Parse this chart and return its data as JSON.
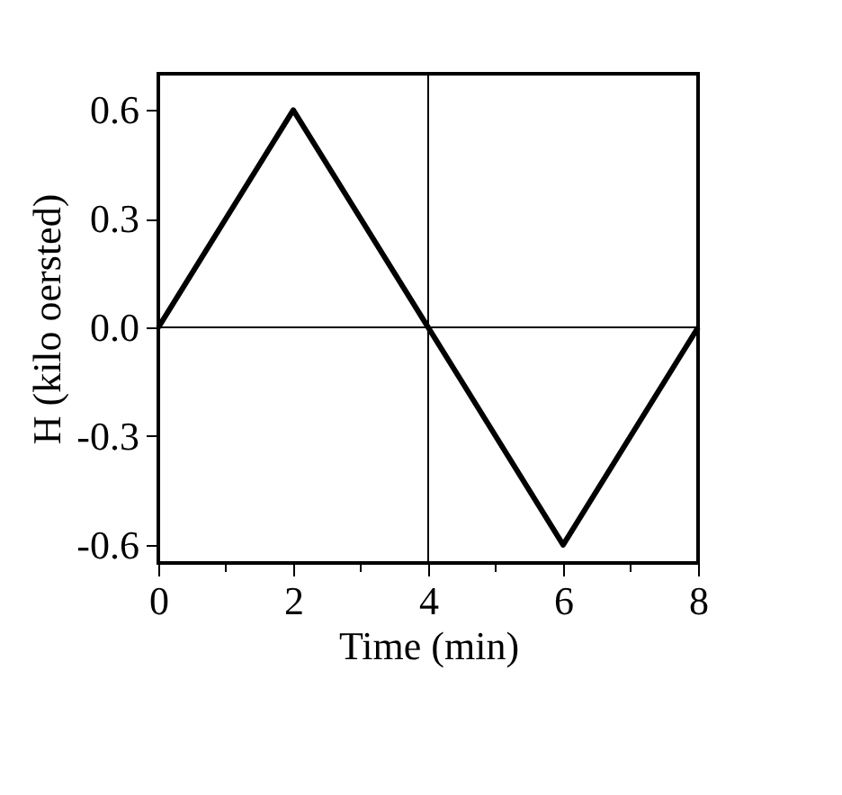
{
  "chart_data": {
    "type": "line",
    "xlabel": "Time (min)",
    "ylabel": "H (kilo oersted)",
    "x": [
      0,
      2,
      4,
      6,
      8
    ],
    "series": [
      {
        "color": "#000000",
        "values": [
          0,
          0.6,
          0,
          -0.6,
          0
        ]
      }
    ],
    "xlim": [
      0,
      8
    ],
    "ylim": [
      -0.65,
      0.7
    ],
    "xticks": [
      0,
      {
        "value": 1,
        "label": null
      },
      2,
      {
        "value": 3,
        "label": null
      },
      4,
      {
        "value": 5,
        "label": null
      },
      6,
      {
        "value": 7,
        "label": null
      },
      8
    ],
    "yticks": [
      {
        "value": -0.6,
        "label": "-0.6"
      },
      {
        "value": -0.3,
        "label": "-0.3"
      },
      {
        "value": 0,
        "label": "0.0"
      },
      {
        "value": 0.3,
        "label": "0.3"
      },
      {
        "value": 0.6,
        "label": "0.6"
      }
    ],
    "ref_lines": [
      {
        "axis": "y",
        "value": 0,
        "color": "#000000"
      },
      {
        "axis": "x",
        "value": 4,
        "color": "#000000"
      }
    ],
    "grid": false,
    "marker": "none",
    "line_style": "solid"
  }
}
